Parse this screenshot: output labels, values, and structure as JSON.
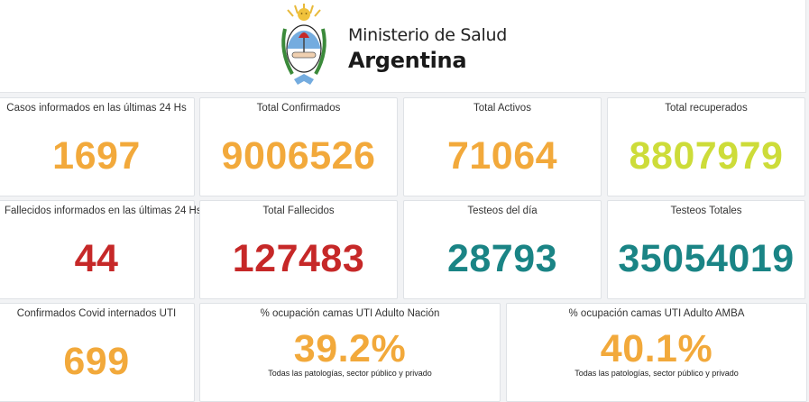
{
  "header": {
    "ministry": "Ministerio de Salud",
    "country": "Argentina"
  },
  "colors": {
    "orange": "#f2a93b",
    "yellow_green": "#cddc39",
    "red": "#c62828",
    "teal": "#1a8485"
  },
  "cards": [
    {
      "title": "Casos informados en las últimas 24 Hs",
      "value": "1697"
    },
    {
      "title": "Total Confirmados",
      "value": "9006526"
    },
    {
      "title": "Total Activos",
      "value": "71064"
    },
    {
      "title": "Total recuperados",
      "value": "8807979"
    },
    {
      "title": "Fallecidos informados en las últimas 24 Hs",
      "value": "44"
    },
    {
      "title": "Total Fallecidos",
      "value": "127483"
    },
    {
      "title": "Testeos del día",
      "value": "28793"
    },
    {
      "title": "Testeos Totales",
      "value": "35054019"
    },
    {
      "title": "Confirmados Covid internados UTI",
      "value": "699"
    },
    {
      "title": "% ocupación camas UTI Adulto Nación",
      "value": "39.2%",
      "subtitle": "Todas las patologías, sector público y privado"
    },
    {
      "title": "% ocupación camas UTI Adulto AMBA",
      "value": "40.1%",
      "subtitle": "Todas las patologías, sector público y privado"
    }
  ]
}
